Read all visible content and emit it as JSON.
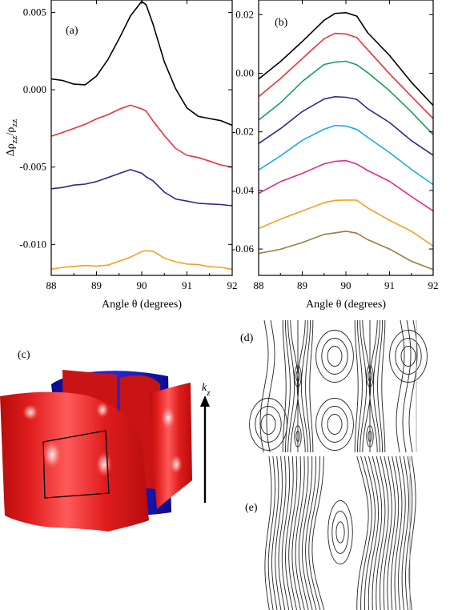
{
  "panels": {
    "a": "(a)",
    "b": "(b)",
    "c": "(c)",
    "d": "(d)",
    "e": "(e)"
  },
  "kz_label": {
    "k": "k",
    "sub": "z"
  },
  "chart_data": [
    {
      "type": "line",
      "panel": "(a)",
      "xlabel": "Angle θ (degrees)",
      "ylabel": "Δρzz/ρzz",
      "xlim": [
        88,
        92
      ],
      "ylim": [
        -0.012,
        0.0058
      ],
      "x_ticks": [
        "88",
        "89",
        "90",
        "91",
        "92"
      ],
      "y_ticks": [
        "0.005",
        "0.000",
        "-0.005",
        "-0.010"
      ],
      "y_tick_values": [
        0.005,
        0.0,
        -0.005,
        -0.01
      ],
      "grid": false,
      "x": [
        88.0,
        88.25,
        88.5,
        88.75,
        89.0,
        89.25,
        89.5,
        89.75,
        90.0,
        90.1,
        90.25,
        90.5,
        90.75,
        91.0,
        91.25,
        91.5,
        91.75,
        92.0
      ],
      "series": [
        {
          "color": "#000000",
          "values": [
            0.0007,
            0.0006,
            0.0004,
            0.0003,
            0.0009,
            0.0019,
            0.0033,
            0.0048,
            0.0057,
            0.0055,
            0.0042,
            0.0018,
            0.0001,
            -0.0012,
            -0.0017,
            -0.0019,
            -0.002,
            -0.0023
          ]
        },
        {
          "color": "#e8333a",
          "values": [
            -0.003,
            -0.0028,
            -0.0025,
            -0.0022,
            -0.0019,
            -0.0016,
            -0.0013,
            -0.001,
            -0.0012,
            -0.0014,
            -0.002,
            -0.003,
            -0.0038,
            -0.0042,
            -0.0044,
            -0.0046,
            -0.0049,
            -0.005
          ]
        },
        {
          "color": "#2a2a8c",
          "values": [
            -0.0064,
            -0.0063,
            -0.0062,
            -0.0061,
            -0.0059,
            -0.0057,
            -0.0054,
            -0.0052,
            -0.0054,
            -0.0056,
            -0.0059,
            -0.0066,
            -0.0071,
            -0.0072,
            -0.0073,
            -0.0074,
            -0.0074,
            -0.0075
          ]
        },
        {
          "color": "#f5a020",
          "values": [
            -0.0116,
            -0.0115,
            -0.0114,
            -0.0114,
            -0.0114,
            -0.0113,
            -0.0111,
            -0.0108,
            -0.0105,
            -0.0104,
            -0.0104,
            -0.0109,
            -0.0111,
            -0.0113,
            -0.0113,
            -0.0114,
            -0.0115,
            -0.0116
          ]
        }
      ]
    },
    {
      "type": "line",
      "panel": "(b)",
      "xlabel": "Angle θ (degrees)",
      "ylabel": "",
      "xlim": [
        88,
        92
      ],
      "ylim": [
        -0.069,
        0.025
      ],
      "x_ticks": [
        "88",
        "89",
        "90",
        "91",
        "92"
      ],
      "y_ticks": [
        "0.02",
        "0.00",
        "-0.02",
        "-0.04",
        "-0.06"
      ],
      "y_tick_values": [
        0.02,
        0.0,
        -0.02,
        -0.04,
        -0.06
      ],
      "grid": false,
      "x": [
        88.0,
        88.5,
        89.0,
        89.5,
        89.75,
        90.0,
        90.25,
        90.5,
        91.0,
        91.5,
        92.0
      ],
      "series": [
        {
          "color": "#000000",
          "values": [
            -0.002,
            0.004,
            0.011,
            0.018,
            0.0205,
            0.0205,
            0.0195,
            0.014,
            0.006,
            -0.003,
            -0.011
          ]
        },
        {
          "color": "#e8333a",
          "values": [
            -0.008,
            -0.002,
            0.005,
            0.012,
            0.0135,
            0.0135,
            0.012,
            0.008,
            0.0,
            -0.008,
            -0.0155
          ]
        },
        {
          "color": "#17a05a",
          "values": [
            -0.016,
            -0.01,
            -0.003,
            0.003,
            0.004,
            0.004,
            0.003,
            0.0,
            -0.006,
            -0.013,
            -0.021
          ]
        },
        {
          "color": "#2a2a8c",
          "values": [
            -0.024,
            -0.019,
            -0.013,
            -0.009,
            -0.008,
            -0.008,
            -0.009,
            -0.012,
            -0.017,
            -0.023,
            -0.028
          ]
        },
        {
          "color": "#19aee0",
          "values": [
            -0.033,
            -0.028,
            -0.023,
            -0.019,
            -0.018,
            -0.018,
            -0.019,
            -0.022,
            -0.027,
            -0.033,
            -0.038
          ]
        },
        {
          "color": "#e6288c",
          "values": [
            -0.041,
            -0.037,
            -0.034,
            -0.031,
            -0.03,
            -0.03,
            -0.031,
            -0.033,
            -0.037,
            -0.042,
            -0.047
          ]
        },
        {
          "color": "#f5a020",
          "values": [
            -0.053,
            -0.05,
            -0.047,
            -0.044,
            -0.0435,
            -0.0432,
            -0.0435,
            -0.046,
            -0.05,
            -0.054,
            -0.059
          ]
        },
        {
          "color": "#9a7d42",
          "values": [
            -0.0615,
            -0.06,
            -0.058,
            -0.055,
            -0.0543,
            -0.054,
            -0.0545,
            -0.057,
            -0.06,
            -0.064,
            -0.067
          ]
        }
      ]
    }
  ]
}
